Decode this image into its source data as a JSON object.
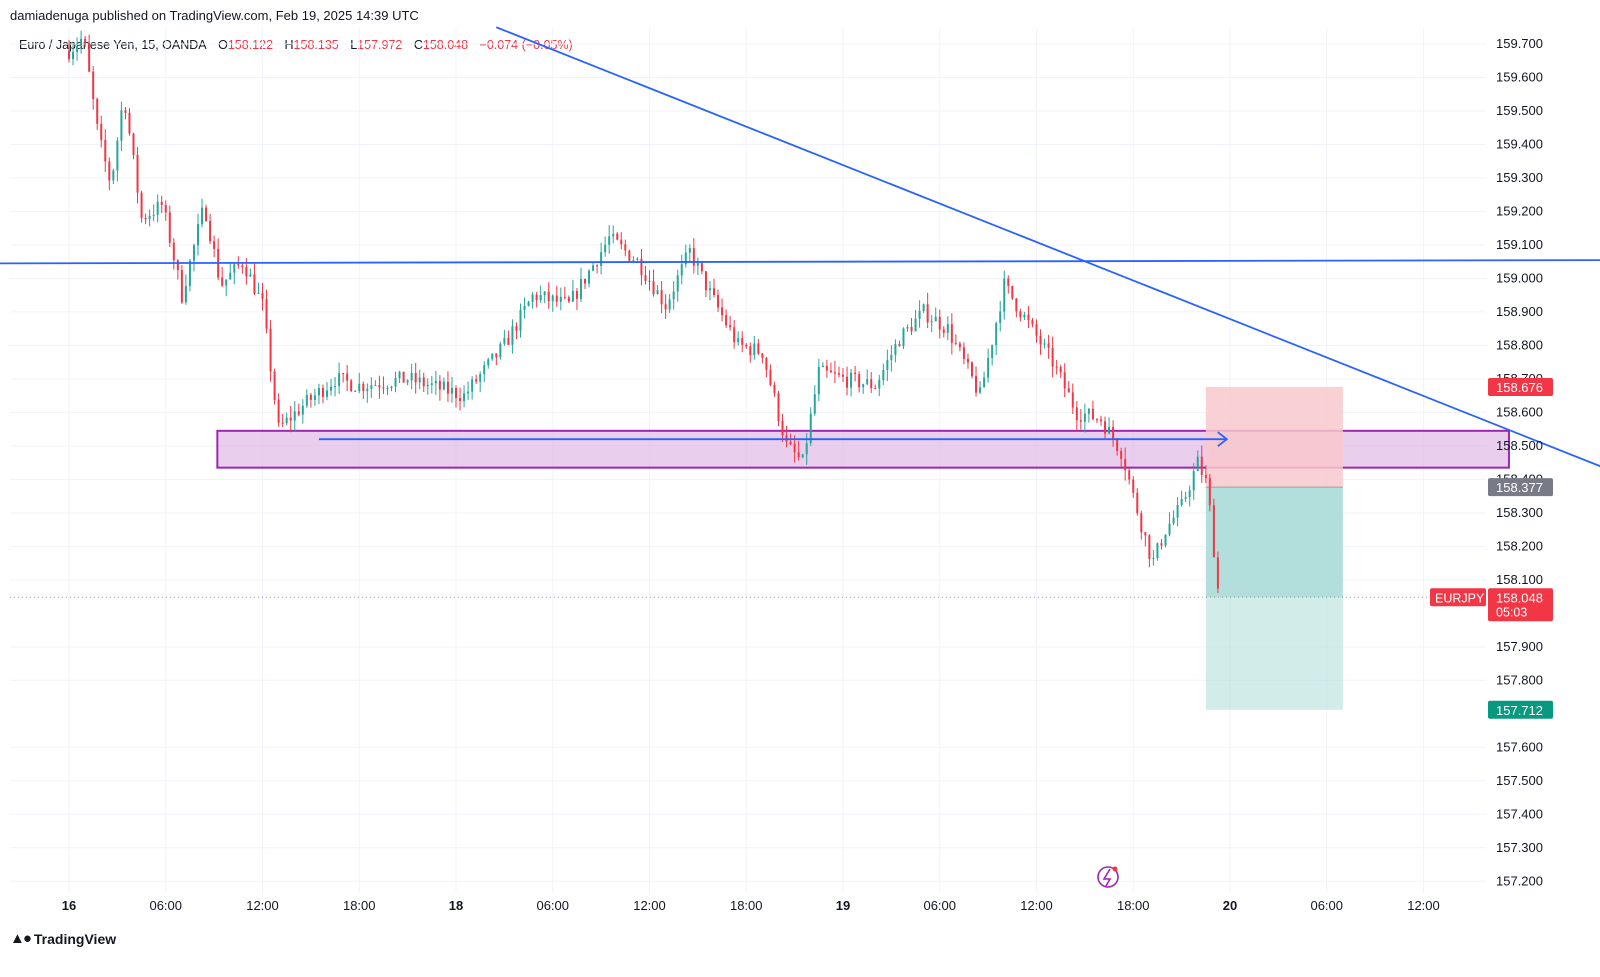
{
  "header": {
    "published_line": "damiadenuga published on TradingView.com, Feb 19, 2025 14:39 UTC"
  },
  "legend": {
    "symbol": "Euro / Japanese Yen, 15, OANDA",
    "open_label": "O",
    "open": "158.122",
    "high_label": "H",
    "high": "158.135",
    "low_label": "L",
    "low": "157.972",
    "close_label": "C",
    "close": "158.048",
    "change": "−0.074 (−0.05%)"
  },
  "footer": {
    "brand": "TradingView"
  },
  "colors": {
    "up": "#26a69a",
    "down": "#f23645",
    "trendline": "#2962ff",
    "zone_fill": "#e1bee7",
    "zone_border": "#9c27b0",
    "stop_fill": "#f8c8cc",
    "target_fill": "#b2dfdb",
    "target_tag": "#089981",
    "stop_tag": "#f23645",
    "entry_tag": "#787b86"
  },
  "chart_data": {
    "type": "candlestick",
    "symbol": "EURJPY",
    "timeframe": "15",
    "ylim": [
      157.13,
      159.73
    ],
    "y_ticks": [
      "159.700",
      "159.600",
      "159.500",
      "159.400",
      "159.300",
      "159.200",
      "159.100",
      "159.000",
      "158.900",
      "158.800",
      "158.700",
      "158.600",
      "158.500",
      "158.400",
      "158.300",
      "158.200",
      "158.100",
      "157.900",
      "157.800",
      "157.600",
      "157.500",
      "157.400",
      "157.300",
      "157.200"
    ],
    "x_ticks": [
      {
        "label": "16",
        "bold": true
      },
      {
        "label": "06:00"
      },
      {
        "label": "12:00"
      },
      {
        "label": "18:00"
      },
      {
        "label": "18",
        "bold": true
      },
      {
        "label": "06:00"
      },
      {
        "label": "12:00"
      },
      {
        "label": "18:00"
      },
      {
        "label": "19",
        "bold": true
      },
      {
        "label": "06:00"
      },
      {
        "label": "12:00"
      },
      {
        "label": "18:00"
      },
      {
        "label": "20",
        "bold": true
      },
      {
        "label": "06:00"
      },
      {
        "label": "12:00"
      }
    ],
    "approx_close_path": [
      {
        "t": 0,
        "p": 159.68
      },
      {
        "t": 0.9,
        "p": 159.72
      },
      {
        "t": 1.8,
        "p": 159.43
      },
      {
        "t": 2.6,
        "p": 159.28
      },
      {
        "t": 3.4,
        "p": 159.55
      },
      {
        "t": 4.5,
        "p": 159.18
      },
      {
        "t": 5.8,
        "p": 159.22
      },
      {
        "t": 7.0,
        "p": 158.95
      },
      {
        "t": 8.4,
        "p": 159.22
      },
      {
        "t": 9.4,
        "p": 158.98
      },
      {
        "t": 10.8,
        "p": 159.05
      },
      {
        "t": 12.0,
        "p": 158.92
      },
      {
        "t": 13.0,
        "p": 158.55
      },
      {
        "t": 14.5,
        "p": 158.62
      },
      {
        "t": 16.5,
        "p": 158.7
      },
      {
        "t": 18.0,
        "p": 158.68
      },
      {
        "t": 21.0,
        "p": 158.7
      },
      {
        "t": 24.5,
        "p": 158.65
      },
      {
        "t": 27.0,
        "p": 158.8
      },
      {
        "t": 28.8,
        "p": 158.95
      },
      {
        "t": 31.0,
        "p": 158.92
      },
      {
        "t": 33.5,
        "p": 159.12
      },
      {
        "t": 35.3,
        "p": 159.05
      },
      {
        "t": 37.0,
        "p": 158.92
      },
      {
        "t": 38.5,
        "p": 159.08
      },
      {
        "t": 39.8,
        "p": 158.95
      },
      {
        "t": 41.5,
        "p": 158.8
      },
      {
        "t": 43.0,
        "p": 158.78
      },
      {
        "t": 44.5,
        "p": 158.5
      },
      {
        "t": 45.5,
        "p": 158.45
      },
      {
        "t": 46.5,
        "p": 158.72
      },
      {
        "t": 48.0,
        "p": 158.7
      },
      {
        "t": 50.0,
        "p": 158.68
      },
      {
        "t": 51.5,
        "p": 158.82
      },
      {
        "t": 53.0,
        "p": 158.9
      },
      {
        "t": 54.5,
        "p": 158.85
      },
      {
        "t": 56.5,
        "p": 158.65
      },
      {
        "t": 58.0,
        "p": 158.98
      },
      {
        "t": 59.3,
        "p": 158.88
      },
      {
        "t": 61.0,
        "p": 158.75
      },
      {
        "t": 62.5,
        "p": 158.6
      },
      {
        "t": 64.0,
        "p": 158.58
      },
      {
        "t": 65.3,
        "p": 158.48
      },
      {
        "t": 66.0,
        "p": 158.35
      },
      {
        "t": 67.2,
        "p": 158.15
      },
      {
        "t": 68.0,
        "p": 158.25
      },
      {
        "t": 69.0,
        "p": 158.32
      },
      {
        "t": 70.0,
        "p": 158.45
      },
      {
        "t": 70.6,
        "p": 158.38
      },
      {
        "t": 71.3,
        "p": 158.05
      }
    ],
    "lines": [
      {
        "name": "horizontal-resistance",
        "from": {
          "t": -4.3,
          "p": 159.045
        },
        "to": {
          "t": 98.2,
          "p": 159.055
        }
      },
      {
        "name": "descending-trendline",
        "from": {
          "t": 26.5,
          "p": 159.75
        },
        "to": {
          "t": 99.1,
          "p": 158.36
        }
      }
    ],
    "zones": [
      {
        "name": "supply-demand-zone",
        "t0": 9.2,
        "t1": 89.3,
        "p_top": 158.545,
        "p_bottom": 158.435
      },
      {
        "name": "short-position",
        "t0": 70.5,
        "t1": 79.0,
        "entry": 158.377,
        "stop": 158.676,
        "target": 157.712
      }
    ],
    "arrow": {
      "from": {
        "t": 15.5,
        "p": 158.52
      },
      "to": {
        "t": 71.8,
        "p": 158.52
      }
    },
    "price_tags": [
      {
        "value": "158.676",
        "kind": "stop"
      },
      {
        "value": "158.377",
        "kind": "entry"
      },
      {
        "value": "157.712",
        "kind": "target"
      }
    ],
    "current_price": {
      "symbol": "EURJPY",
      "value": "158.048",
      "countdown": "05:03"
    }
  }
}
